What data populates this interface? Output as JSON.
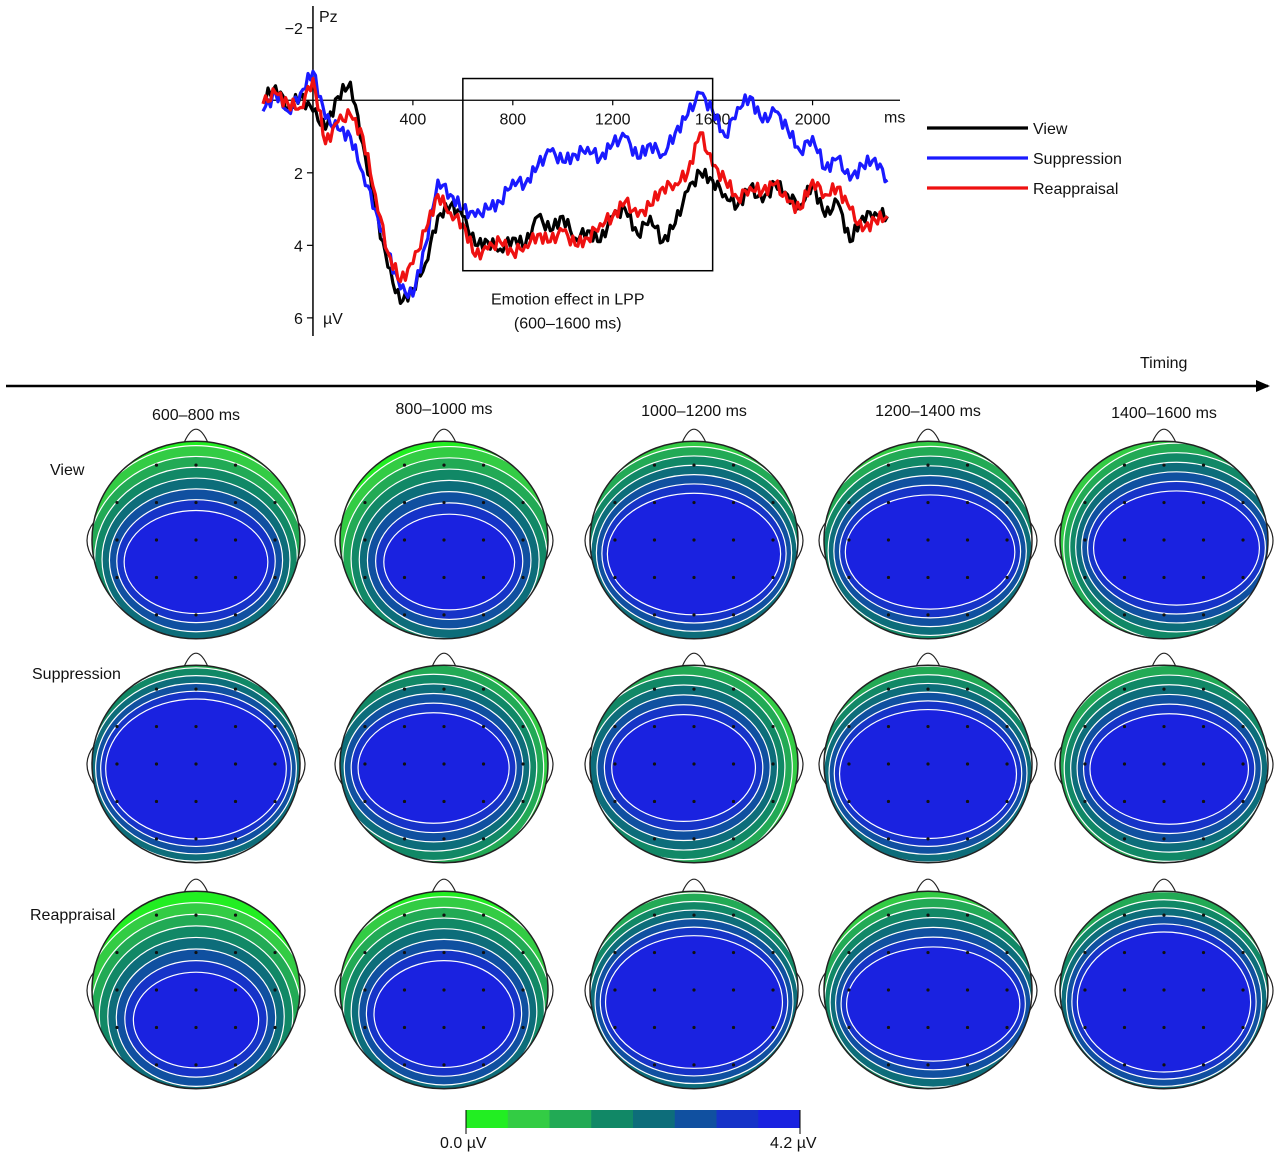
{
  "chart_data": [
    {
      "type": "line",
      "channel_label": "Pz",
      "x_unit": "ms",
      "y_unit": "µV",
      "x_ticks": [
        400,
        800,
        1200,
        1600,
        2000
      ],
      "y_ticks": [
        -2,
        2,
        4,
        6
      ],
      "xlim": [
        -200,
        2350
      ],
      "ylim": [
        6.5,
        -2.6
      ],
      "y_inverted": true,
      "series": [
        {
          "name": "View",
          "color": "#000000",
          "x": [
            -200,
            -150,
            -100,
            -50,
            0,
            50,
            100,
            150,
            200,
            250,
            300,
            350,
            400,
            450,
            500,
            550,
            600,
            650,
            700,
            750,
            800,
            850,
            900,
            950,
            1000,
            1050,
            1100,
            1150,
            1200,
            1250,
            1300,
            1350,
            1400,
            1450,
            1500,
            1550,
            1600,
            1650,
            1700,
            1750,
            1800,
            1850,
            1900,
            1950,
            2000,
            2050,
            2100,
            2150,
            2200,
            2250,
            2300
          ],
          "y": [
            0.0,
            -0.4,
            0.2,
            -0.1,
            0.3,
            0.8,
            -0.1,
            -0.5,
            1.2,
            3.0,
            4.6,
            5.6,
            5.2,
            4.5,
            3.2,
            2.9,
            3.2,
            4.0,
            3.9,
            4.1,
            3.8,
            4.0,
            3.2,
            3.6,
            3.2,
            3.8,
            3.6,
            3.9,
            3.2,
            3.0,
            3.7,
            3.2,
            3.9,
            3.4,
            2.5,
            2.0,
            2.2,
            2.6,
            2.9,
            2.4,
            2.8,
            2.3,
            2.6,
            2.9,
            2.3,
            3.2,
            2.8,
            3.9,
            3.2,
            3.1,
            3.2
          ]
        },
        {
          "name": "Suppression",
          "color": "#1a1aff",
          "x": [
            -200,
            -150,
            -100,
            -50,
            0,
            50,
            100,
            150,
            200,
            250,
            300,
            350,
            400,
            450,
            500,
            550,
            600,
            650,
            700,
            750,
            800,
            850,
            900,
            950,
            1000,
            1050,
            1100,
            1150,
            1200,
            1250,
            1300,
            1350,
            1400,
            1450,
            1500,
            1550,
            1600,
            1650,
            1700,
            1750,
            1800,
            1850,
            1900,
            1950,
            2000,
            2050,
            2100,
            2150,
            2200,
            2250,
            2300
          ],
          "y": [
            0.3,
            -0.2,
            0.3,
            -0.2,
            -0.8,
            0.5,
            0.8,
            1.0,
            2.0,
            3.0,
            4.2,
            5.2,
            5.4,
            4.0,
            2.2,
            2.6,
            3.0,
            3.2,
            3.0,
            2.8,
            2.2,
            2.3,
            1.8,
            1.4,
            1.7,
            1.5,
            1.3,
            1.6,
            1.2,
            1.0,
            1.6,
            1.2,
            1.5,
            0.9,
            0.4,
            -0.2,
            0.3,
            1.0,
            0.2,
            -0.1,
            0.6,
            0.3,
            0.8,
            1.4,
            1.0,
            1.9,
            1.6,
            2.2,
            1.8,
            1.6,
            2.2
          ]
        },
        {
          "name": "Reappraisal",
          "color": "#ee1111",
          "x": [
            -200,
            -150,
            -100,
            -50,
            0,
            50,
            100,
            150,
            200,
            250,
            300,
            350,
            400,
            450,
            500,
            550,
            600,
            650,
            700,
            750,
            800,
            850,
            900,
            950,
            1000,
            1050,
            1100,
            1150,
            1200,
            1250,
            1300,
            1350,
            1400,
            1450,
            1500,
            1550,
            1600,
            1650,
            1700,
            1750,
            1800,
            1850,
            1900,
            1950,
            2000,
            2050,
            2100,
            2150,
            2200,
            2250,
            2300
          ],
          "y": [
            0.1,
            -0.2,
            0.1,
            0.2,
            -0.6,
            1.2,
            0.6,
            0.4,
            1.0,
            2.6,
            4.2,
            5.0,
            4.5,
            3.6,
            2.6,
            3.1,
            3.4,
            4.3,
            4.1,
            3.9,
            4.2,
            4.0,
            3.7,
            3.9,
            3.6,
            4.0,
            3.8,
            3.4,
            3.2,
            2.8,
            3.2,
            2.9,
            2.4,
            2.3,
            2.0,
            0.9,
            1.8,
            2.2,
            2.7,
            2.4,
            2.5,
            2.3,
            2.8,
            3.0,
            2.2,
            2.6,
            2.4,
            3.0,
            3.6,
            3.3,
            3.2
          ]
        }
      ],
      "highlight": {
        "x_range": [
          600,
          1600
        ],
        "y_range": [
          -0.6,
          4.7
        ],
        "label_line1": "Emotion effect in LPP",
        "label_line2": "(600–1600 ms)"
      }
    },
    {
      "type": "heatmap",
      "subtype": "scalp topography",
      "axis_label": "Timing",
      "time_windows": [
        "600–800 ms",
        "800–1000 ms",
        "1000–1200 ms",
        "1200–1400 ms",
        "1400–1600 ms"
      ],
      "conditions": [
        "View",
        "Suppression",
        "Reappraisal"
      ],
      "colorscale": {
        "min_label": "0.0 µV",
        "max_label": "4.2 µV",
        "colors": [
          "#22ee22",
          "#33cc44",
          "#22aa55",
          "#118866",
          "#0d6d7a",
          "#1050a0",
          "#1633c8",
          "#1a22e0"
        ]
      }
    }
  ]
}
